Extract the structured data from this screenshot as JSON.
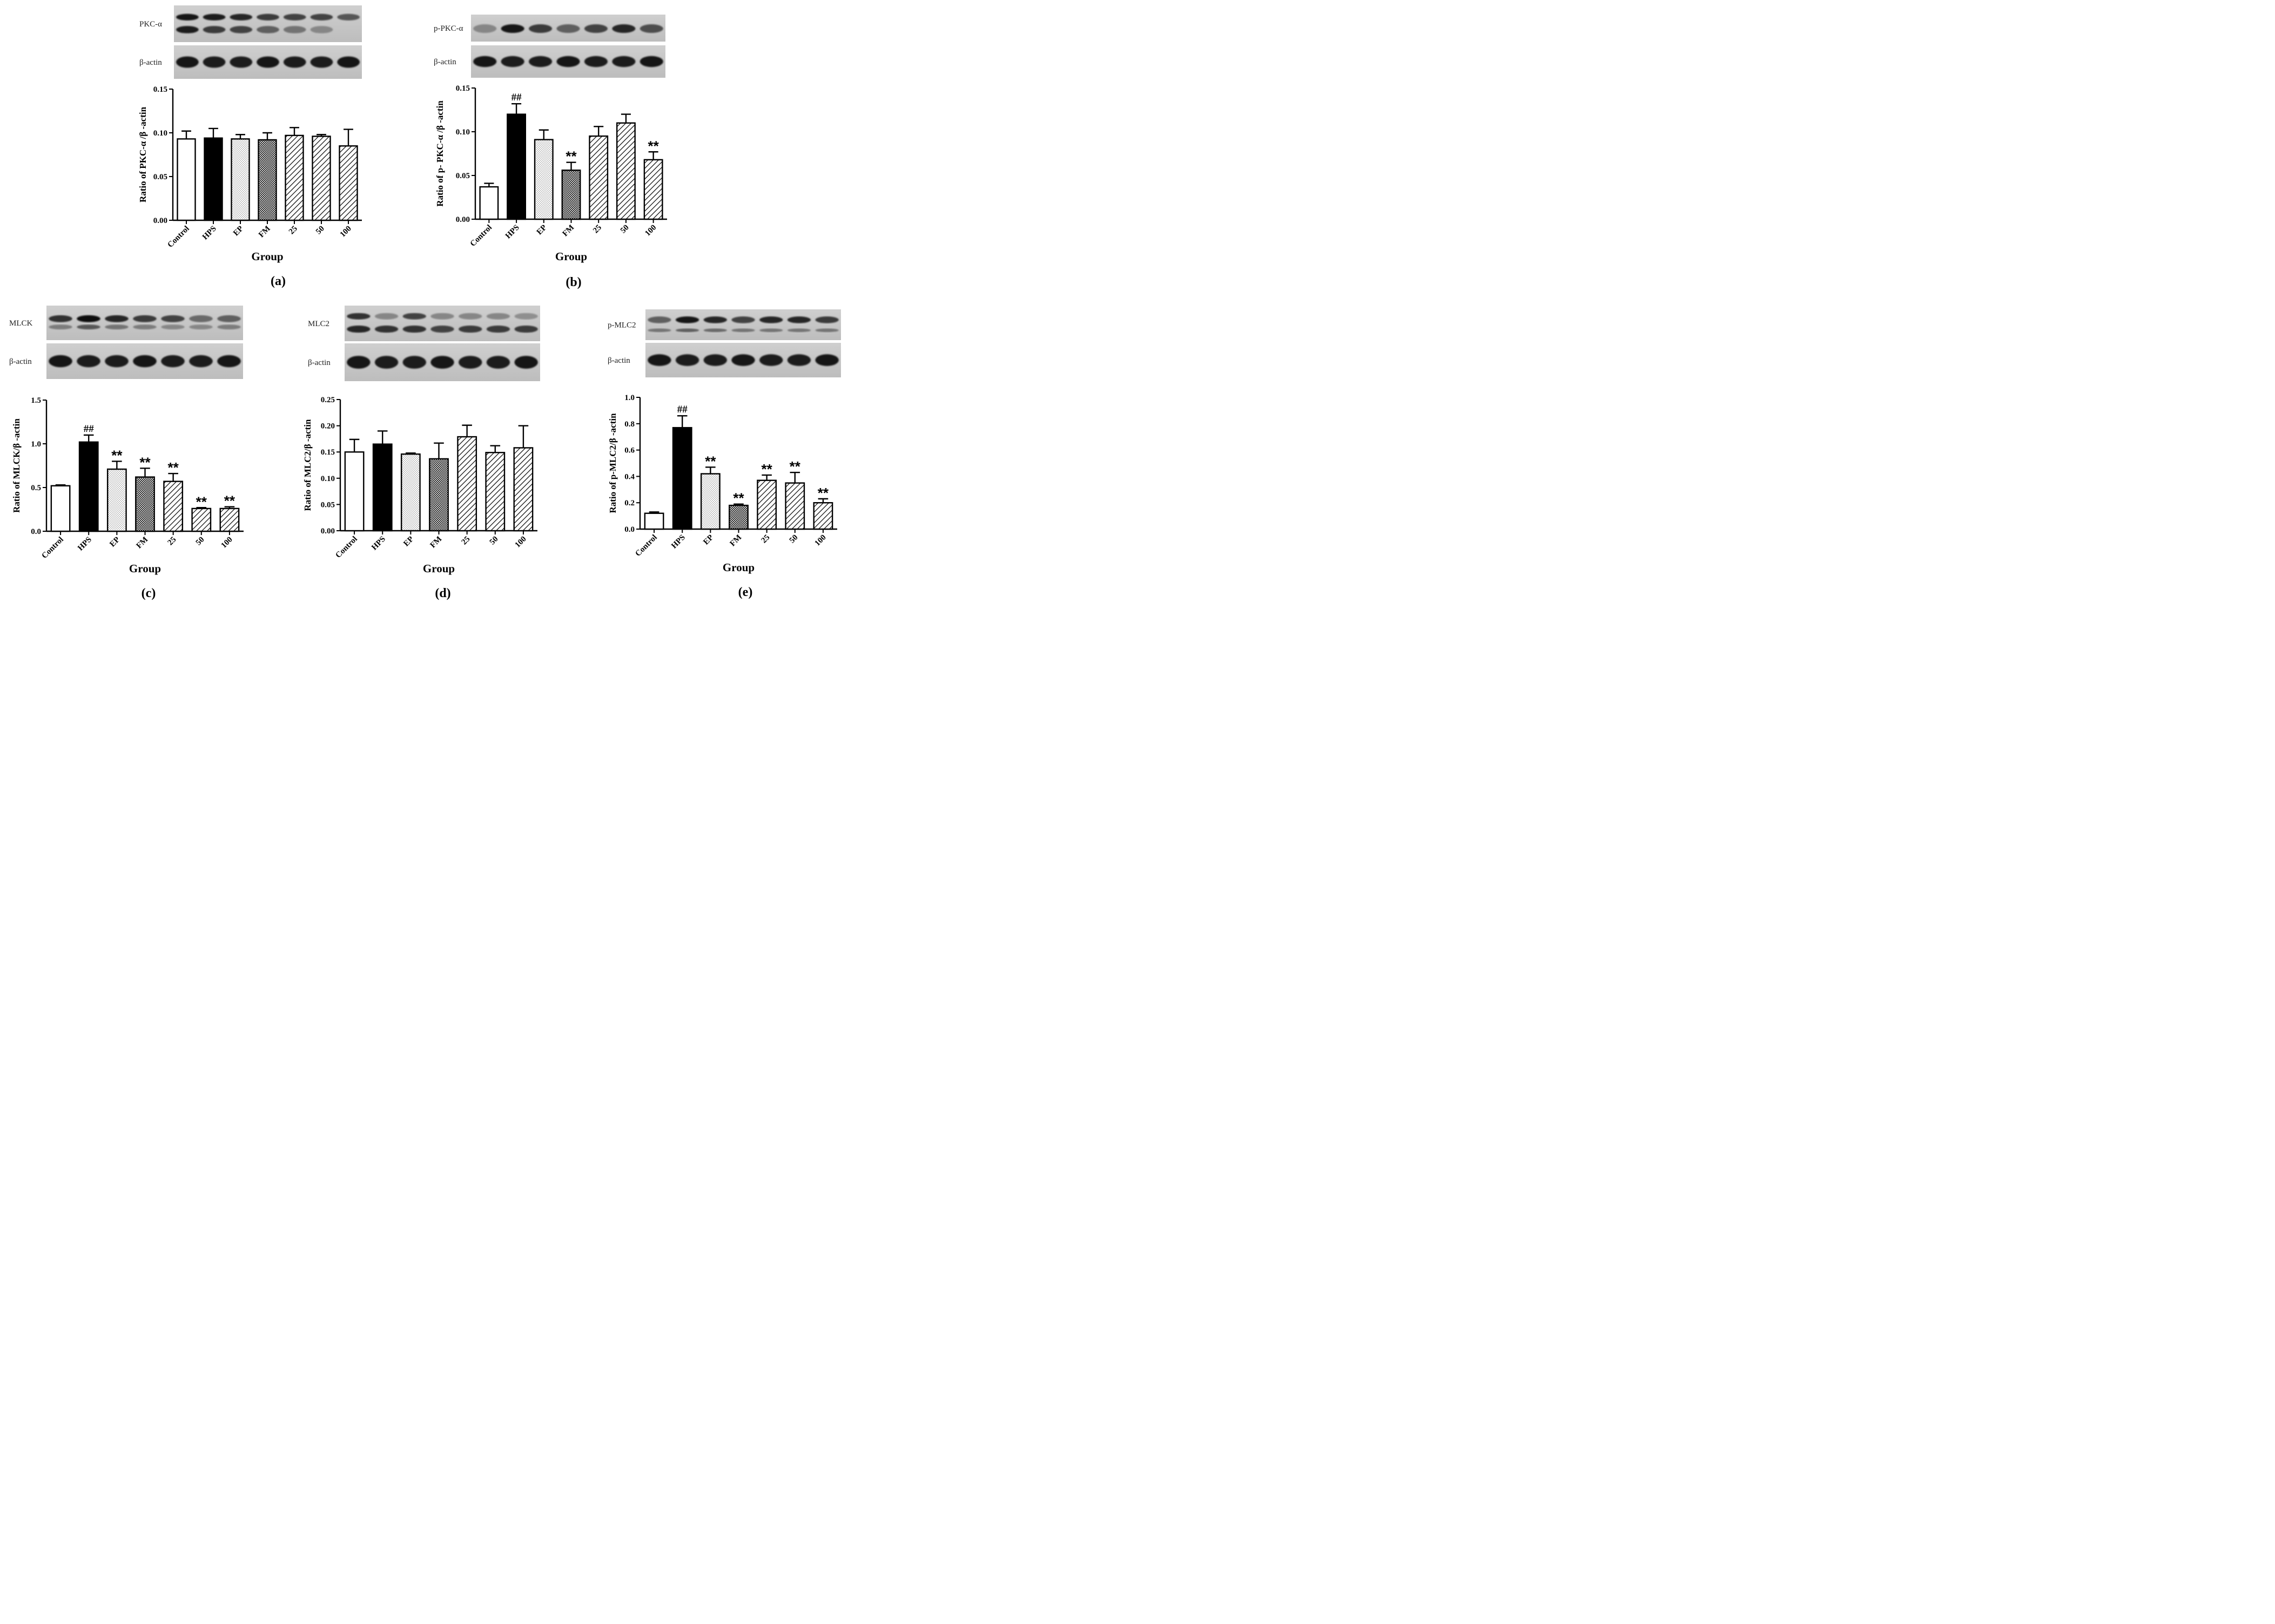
{
  "figure": {
    "panels": [
      {
        "id": "a",
        "panel_label": "(a)",
        "blots": [
          {
            "label": "PKC-α",
            "kind": "pkc"
          },
          {
            "label": "β-actin",
            "kind": "actin"
          }
        ],
        "chart_data": {
          "type": "bar",
          "categories": [
            "Control",
            "HPS",
            "EP",
            "FM",
            "25",
            "50",
            "100"
          ],
          "values": [
            0.093,
            0.094,
            0.093,
            0.092,
            0.097,
            0.096,
            0.085
          ],
          "errors": [
            0.009,
            0.011,
            0.005,
            0.008,
            0.009,
            0.002,
            0.019
          ],
          "significance": [
            "",
            "",
            "",
            "",
            "",
            "",
            ""
          ],
          "ylabel": "Ratio of PKC-α /β -actin",
          "xlabel": "Group",
          "ylim": [
            0,
            0.15
          ],
          "yticks": [
            "0.00",
            "0.05",
            "0.10",
            "0.15"
          ]
        }
      },
      {
        "id": "b",
        "panel_label": "(b)",
        "blots": [
          {
            "label": "p-PKC-α",
            "kind": "ppkc"
          },
          {
            "label": "β-actin",
            "kind": "actin"
          }
        ],
        "chart_data": {
          "type": "bar",
          "categories": [
            "Control",
            "HPS",
            "EP",
            "FM",
            "25",
            "50",
            "100"
          ],
          "values": [
            0.037,
            0.12,
            0.091,
            0.056,
            0.095,
            0.11,
            0.068
          ],
          "errors": [
            0.004,
            0.012,
            0.011,
            0.009,
            0.011,
            0.01,
            0.009
          ],
          "significance": [
            "",
            "##",
            "",
            "**",
            "",
            "",
            "**"
          ],
          "ylabel": "Ratio of p- PKC-α /β -actin",
          "xlabel": "Group",
          "ylim": [
            0,
            0.15
          ],
          "yticks": [
            "0.00",
            "0.05",
            "0.10",
            "0.15"
          ]
        }
      },
      {
        "id": "c",
        "panel_label": "(c)",
        "blots": [
          {
            "label": "MLCK",
            "kind": "mlck"
          },
          {
            "label": "β-actin",
            "kind": "actin"
          }
        ],
        "chart_data": {
          "type": "bar",
          "categories": [
            "Control",
            "HPS",
            "EP",
            "FM",
            "25",
            "50",
            "100"
          ],
          "values": [
            0.52,
            1.02,
            0.71,
            0.62,
            0.57,
            0.26,
            0.26
          ],
          "errors": [
            0.01,
            0.08,
            0.09,
            0.1,
            0.09,
            0.01,
            0.02
          ],
          "significance": [
            "",
            "##",
            "**",
            "**",
            "**",
            "**",
            "**"
          ],
          "ylabel": "Ratio of MLCK/β -actin",
          "xlabel": "Group",
          "ylim": [
            0,
            1.5
          ],
          "yticks": [
            "0.0",
            "0.5",
            "1.0",
            "1.5"
          ]
        }
      },
      {
        "id": "d",
        "panel_label": "(d)",
        "blots": [
          {
            "label": "MLC2",
            "kind": "mlc2"
          },
          {
            "label": "β-actin",
            "kind": "actin"
          }
        ],
        "chart_data": {
          "type": "bar",
          "categories": [
            "Control",
            "HPS",
            "EP",
            "FM",
            "25",
            "50",
            "100"
          ],
          "values": [
            0.15,
            0.165,
            0.146,
            0.137,
            0.179,
            0.149,
            0.158
          ],
          "errors": [
            0.024,
            0.025,
            0.002,
            0.03,
            0.022,
            0.013,
            0.042
          ],
          "significance": [
            "",
            "",
            "",
            "",
            "",
            "",
            ""
          ],
          "ylabel": "Ratio of MLC2/β -actin",
          "xlabel": "Group",
          "ylim": [
            0,
            0.25
          ],
          "yticks": [
            "0.00",
            "0.05",
            "0.10",
            "0.15",
            "0.20",
            "0.25"
          ]
        }
      },
      {
        "id": "e",
        "panel_label": "(e)",
        "blots": [
          {
            "label": "p-MLC2",
            "kind": "pmlc2"
          },
          {
            "label": "β-actin",
            "kind": "actin"
          }
        ],
        "chart_data": {
          "type": "bar",
          "categories": [
            "Control",
            "HPS",
            "EP",
            "FM",
            "25",
            "50",
            "100"
          ],
          "values": [
            0.12,
            0.77,
            0.42,
            0.18,
            0.37,
            0.35,
            0.2
          ],
          "errors": [
            0.01,
            0.09,
            0.05,
            0.01,
            0.04,
            0.08,
            0.03
          ],
          "significance": [
            "",
            "##",
            "**",
            "**",
            "**",
            "**",
            "**"
          ],
          "ylabel": "Ratio of p-MLC2/β -actin",
          "xlabel": "Group",
          "ylim": [
            0,
            1.0
          ],
          "yticks": [
            "0.0",
            "0.2",
            "0.4",
            "0.6",
            "0.8",
            "1.0"
          ]
        }
      }
    ]
  }
}
